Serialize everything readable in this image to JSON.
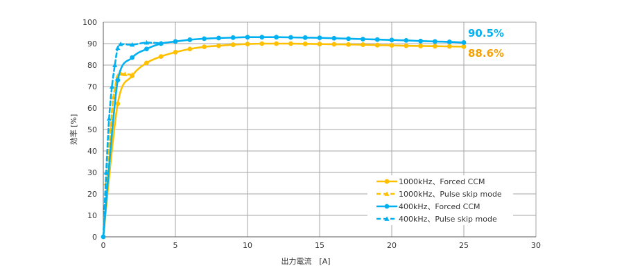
{
  "chart_data": {
    "type": "line",
    "xlabel": "出力電流　[A]",
    "ylabel": "効率 [%]",
    "xlim": [
      0,
      30
    ],
    "ylim": [
      0,
      100
    ],
    "x_ticks": [
      0,
      5,
      10,
      15,
      20,
      25,
      30
    ],
    "y_ticks": [
      0,
      10,
      20,
      30,
      40,
      50,
      60,
      70,
      80,
      90,
      100
    ],
    "grid": true,
    "legend_position": "bottom-right",
    "series": [
      {
        "name": "1000kHz、Forced CCM",
        "color": "#FFC000",
        "dash": "solid",
        "marker": "circle",
        "x": [
          0,
          1,
          2,
          3,
          4,
          5,
          6,
          7,
          8,
          9,
          10,
          11,
          12,
          13,
          14,
          15,
          16,
          17,
          18,
          19,
          20,
          21,
          22,
          23,
          24,
          25
        ],
        "y": [
          0,
          62,
          75,
          81,
          84,
          86,
          87.5,
          88.5,
          89,
          89.5,
          89.8,
          90,
          90,
          90,
          89.9,
          89.8,
          89.7,
          89.6,
          89.5,
          89.3,
          89.2,
          89,
          88.9,
          88.8,
          88.7,
          88.6
        ]
      },
      {
        "name": "1000kHz、Pulse skip mode",
        "color": "#FFC000",
        "dash": "dashed",
        "marker": "triangle",
        "x": [
          0,
          0.2,
          0.5,
          0.7,
          1,
          1.2,
          1.5,
          2
        ],
        "y": [
          0,
          25,
          50,
          65,
          75,
          76,
          75.8,
          75.5
        ]
      },
      {
        "name": "400kHz、Forced CCM",
        "color": "#00B0F0",
        "dash": "solid",
        "marker": "circle",
        "x": [
          0,
          1,
          2,
          3,
          4,
          5,
          6,
          7,
          8,
          9,
          10,
          11,
          12,
          13,
          14,
          15,
          16,
          17,
          18,
          19,
          20,
          21,
          22,
          23,
          24,
          25
        ],
        "y": [
          0,
          73,
          83.5,
          87.5,
          90,
          91,
          91.8,
          92.3,
          92.6,
          92.8,
          93,
          93,
          93,
          92.9,
          92.8,
          92.7,
          92.5,
          92.3,
          92.1,
          91.9,
          91.7,
          91.5,
          91.2,
          91,
          90.8,
          90.5
        ]
      },
      {
        "name": "400kHz、Pulse skip mode",
        "color": "#00B0F0",
        "dash": "dashed",
        "marker": "triangle",
        "x": [
          0,
          0.2,
          0.4,
          0.6,
          0.8,
          1,
          1.2,
          2,
          3,
          4
        ],
        "y": [
          0,
          30,
          55,
          70,
          80,
          88,
          89.8,
          89.5,
          90.5,
          90.2
        ]
      }
    ],
    "annotations": [
      {
        "text": "90.5%",
        "x": 25,
        "y": 90.5,
        "color": "#00B0F0"
      },
      {
        "text": "88.6%",
        "x": 25,
        "y": 88.6,
        "color": "#F5A000"
      }
    ]
  }
}
